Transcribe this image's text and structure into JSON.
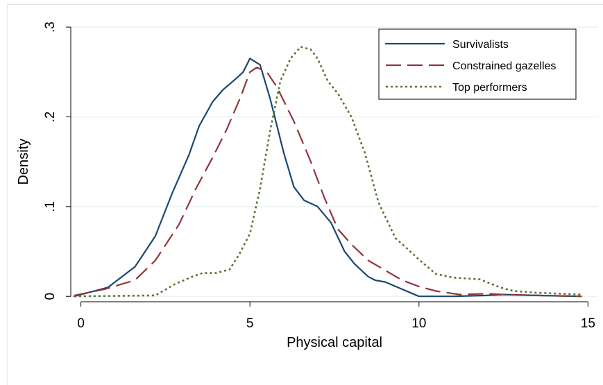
{
  "chart_data": {
    "type": "line",
    "title": "",
    "xlabel": "Physical capital",
    "ylabel": "Density",
    "xlim": [
      -0.3,
      15.3
    ],
    "ylim": [
      -0.006,
      0.307
    ],
    "x_ticks": [
      {
        "value": 0,
        "label": "0"
      },
      {
        "value": 5,
        "label": "5"
      },
      {
        "value": 10,
        "label": "10"
      },
      {
        "value": 15,
        "label": "15"
      }
    ],
    "y_ticks": [
      {
        "value": 0,
        "label": "0"
      },
      {
        "value": 0.1,
        "label": ".1"
      },
      {
        "value": 0.2,
        "label": ".2"
      },
      {
        "value": 0.3,
        "label": ".3"
      }
    ],
    "grid": true,
    "legend_position": "top-right",
    "series": [
      {
        "name": "Survivalists",
        "color": "#1a476f",
        "dash": "solid",
        "points": [
          [
            -0.2,
            0.0
          ],
          [
            0.8,
            0.01
          ],
          [
            1.6,
            0.033
          ],
          [
            2.2,
            0.067
          ],
          [
            2.7,
            0.115
          ],
          [
            3.2,
            0.158
          ],
          [
            3.5,
            0.19
          ],
          [
            3.9,
            0.217
          ],
          [
            4.2,
            0.23
          ],
          [
            4.6,
            0.243
          ],
          [
            4.8,
            0.25
          ],
          [
            5.0,
            0.265
          ],
          [
            5.3,
            0.258
          ],
          [
            5.6,
            0.22
          ],
          [
            6.0,
            0.16
          ],
          [
            6.3,
            0.122
          ],
          [
            6.6,
            0.107
          ],
          [
            7.0,
            0.1
          ],
          [
            7.4,
            0.082
          ],
          [
            7.8,
            0.05
          ],
          [
            8.1,
            0.036
          ],
          [
            8.5,
            0.022
          ],
          [
            8.7,
            0.018
          ],
          [
            9.0,
            0.016
          ],
          [
            9.5,
            0.008
          ],
          [
            10.0,
            0.0
          ],
          [
            11.0,
            0.0
          ],
          [
            12.0,
            0.001
          ],
          [
            12.5,
            0.002
          ],
          [
            13.5,
            0.001
          ],
          [
            14.8,
            0.0
          ]
        ]
      },
      {
        "name": "Constrained gazelles",
        "color": "#90353b",
        "dash": "long",
        "points": [
          [
            -0.2,
            0.001
          ],
          [
            0.7,
            0.008
          ],
          [
            1.6,
            0.018
          ],
          [
            2.2,
            0.04
          ],
          [
            2.9,
            0.08
          ],
          [
            3.4,
            0.12
          ],
          [
            3.9,
            0.155
          ],
          [
            4.3,
            0.185
          ],
          [
            4.7,
            0.22
          ],
          [
            5.0,
            0.25
          ],
          [
            5.2,
            0.255
          ],
          [
            5.5,
            0.25
          ],
          [
            5.8,
            0.233
          ],
          [
            6.3,
            0.195
          ],
          [
            6.8,
            0.15
          ],
          [
            7.2,
            0.11
          ],
          [
            7.6,
            0.075
          ],
          [
            8.0,
            0.058
          ],
          [
            8.5,
            0.04
          ],
          [
            9.0,
            0.029
          ],
          [
            9.5,
            0.018
          ],
          [
            10.0,
            0.011
          ],
          [
            10.5,
            0.006
          ],
          [
            11.2,
            0.002
          ],
          [
            12.0,
            0.003
          ],
          [
            12.5,
            0.002
          ],
          [
            13.5,
            0.001
          ],
          [
            14.8,
            0.0
          ]
        ]
      },
      {
        "name": "Top performers",
        "color": "#55752f",
        "dash": "dotted",
        "points": [
          [
            -0.2,
            0.0
          ],
          [
            2.2,
            0.001
          ],
          [
            2.8,
            0.014
          ],
          [
            3.3,
            0.022
          ],
          [
            3.6,
            0.026
          ],
          [
            4.0,
            0.026
          ],
          [
            4.4,
            0.03
          ],
          [
            4.7,
            0.048
          ],
          [
            5.0,
            0.07
          ],
          [
            5.3,
            0.12
          ],
          [
            5.6,
            0.185
          ],
          [
            5.9,
            0.24
          ],
          [
            6.2,
            0.265
          ],
          [
            6.5,
            0.278
          ],
          [
            6.8,
            0.275
          ],
          [
            7.0,
            0.265
          ],
          [
            7.3,
            0.24
          ],
          [
            7.6,
            0.226
          ],
          [
            8.0,
            0.2
          ],
          [
            8.4,
            0.16
          ],
          [
            8.8,
            0.105
          ],
          [
            9.3,
            0.065
          ],
          [
            9.6,
            0.055
          ],
          [
            10.0,
            0.041
          ],
          [
            10.5,
            0.025
          ],
          [
            11.0,
            0.021
          ],
          [
            11.8,
            0.019
          ],
          [
            12.4,
            0.01
          ],
          [
            12.8,
            0.006
          ],
          [
            13.5,
            0.004
          ],
          [
            14.2,
            0.003
          ],
          [
            14.8,
            0.002
          ]
        ]
      }
    ]
  }
}
